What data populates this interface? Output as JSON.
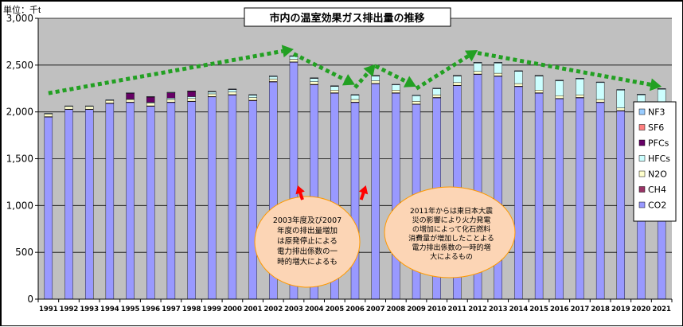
{
  "chart_data": {
    "type": "bar",
    "stacked": true,
    "title": "市内の温室効果ガス排出量の推移",
    "unit_label": "単位：千t",
    "ylim": [
      0,
      3000
    ],
    "y_ticks": [
      "0",
      "500",
      "1,000",
      "1,500",
      "2,000",
      "2,500",
      "3,000"
    ],
    "y_tick_values": [
      0,
      500,
      1000,
      1500,
      2000,
      2500,
      3000
    ],
    "categories": [
      "1991",
      "1992",
      "1993",
      "1994",
      "1995",
      "1996",
      "1997",
      "1998",
      "1999",
      "2000",
      "2001",
      "2002",
      "2003",
      "2004",
      "2005",
      "2006",
      "2007",
      "2008",
      "2009",
      "2010",
      "2011",
      "2012",
      "2013",
      "2014",
      "2015",
      "2016",
      "2017",
      "2018",
      "2019",
      "2020",
      "2021"
    ],
    "series": [
      {
        "name": "CO2",
        "color": "#9999ff",
        "values": [
          1945,
          2025,
          2025,
          2090,
          2100,
          2060,
          2100,
          2110,
          2160,
          2180,
          2120,
          2320,
          2530,
          2290,
          2200,
          2100,
          2300,
          2200,
          2080,
          2150,
          2280,
          2400,
          2380,
          2270,
          2200,
          2140,
          2150,
          2100,
          2010,
          1950,
          2000
        ]
      },
      {
        "name": "CH4",
        "color": "#993366",
        "values": [
          5,
          5,
          5,
          5,
          5,
          5,
          5,
          5,
          5,
          5,
          5,
          5,
          5,
          5,
          5,
          5,
          5,
          5,
          5,
          5,
          5,
          5,
          5,
          5,
          5,
          5,
          5,
          5,
          5,
          5,
          5
        ]
      },
      {
        "name": "N2O",
        "color": "#ffffcc",
        "values": [
          28,
          28,
          28,
          28,
          28,
          28,
          28,
          28,
          28,
          28,
          28,
          28,
          28,
          28,
          28,
          28,
          28,
          28,
          28,
          28,
          28,
          28,
          28,
          28,
          28,
          28,
          28,
          28,
          28,
          28,
          28
        ]
      },
      {
        "name": "HFCs",
        "color": "#ccffff",
        "values": [
          0,
          0,
          0,
          0,
          5,
          10,
          15,
          20,
          20,
          25,
          25,
          25,
          30,
          35,
          40,
          45,
          50,
          55,
          60,
          65,
          70,
          90,
          110,
          130,
          150,
          160,
          170,
          180,
          190,
          200,
          210
        ]
      },
      {
        "name": "PFCs",
        "color": "#660066",
        "values": [
          0,
          0,
          0,
          0,
          60,
          55,
          55,
          55,
          0,
          0,
          0,
          0,
          0,
          0,
          0,
          0,
          0,
          0,
          0,
          0,
          0,
          0,
          0,
          0,
          0,
          0,
          0,
          0,
          0,
          0,
          0
        ]
      },
      {
        "name": "SF6",
        "color": "#ff8080",
        "values": [
          5,
          5,
          5,
          5,
          5,
          5,
          5,
          5,
          5,
          5,
          5,
          5,
          5,
          5,
          5,
          5,
          5,
          5,
          5,
          5,
          5,
          5,
          5,
          5,
          5,
          5,
          5,
          5,
          5,
          5,
          5
        ]
      },
      {
        "name": "NF3",
        "color": "#99ccff",
        "values": [
          2,
          2,
          2,
          2,
          2,
          2,
          2,
          2,
          2,
          2,
          2,
          2,
          2,
          2,
          2,
          2,
          2,
          2,
          2,
          2,
          2,
          2,
          2,
          2,
          2,
          2,
          2,
          2,
          2,
          2,
          2
        ]
      }
    ],
    "legend_order": [
      "NF3",
      "SF6",
      "PFCs",
      "HFCs",
      "N2O",
      "CH4",
      "CO2"
    ],
    "legend_position": "right",
    "trend_arrows": [
      {
        "from_year": "1991",
        "from_value": 2200,
        "to_year": "2003",
        "to_value": 2670
      },
      {
        "from_year": "2003",
        "from_value": 2620,
        "to_year": "2006",
        "to_value": 2290
      },
      {
        "from_year": "2006",
        "from_value": 2260,
        "to_year": "2007",
        "to_value": 2510
      },
      {
        "from_year": "2007",
        "from_value": 2490,
        "to_year": "2009",
        "to_value": 2270
      },
      {
        "from_year": "2009",
        "from_value": 2250,
        "to_year": "2012",
        "to_value": 2660
      },
      {
        "from_year": "2012",
        "from_value": 2630,
        "to_year": "2021",
        "to_value": 2270
      }
    ],
    "annotations": [
      {
        "id": "note-2003",
        "lines": [
          "2003年度及び2007",
          "年度の排出量増加",
          "は原発停止による",
          "電力排出係数の一",
          "時的増大によるも"
        ]
      },
      {
        "id": "note-2011",
        "lines": [
          "2011年からは東日本大震",
          "災の影響により火力発電",
          "の増加によって化石燃料",
          "消費量が増加したことよる",
          "電力排出係数の一時的増",
          "大によるもの"
        ]
      }
    ],
    "highlight_years": [
      "2003",
      "2007"
    ]
  }
}
